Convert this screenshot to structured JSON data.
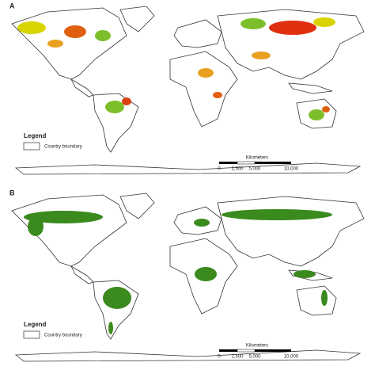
{
  "panels": [
    {
      "label": "A",
      "legend": {
        "title": "Legend",
        "items": [
          "Country boundary"
        ]
      },
      "scale_bar": {
        "unit": "Kilometers",
        "ticks": [
          "0",
          "2,500",
          "5,000",
          "10,000"
        ]
      }
    },
    {
      "label": "B",
      "legend": {
        "title": "Legend",
        "items": [
          "Country boundary"
        ]
      },
      "scale_bar": {
        "unit": "Kilometers",
        "ticks": [
          "0",
          "2,500",
          "5,000",
          "10,000"
        ]
      }
    }
  ]
}
